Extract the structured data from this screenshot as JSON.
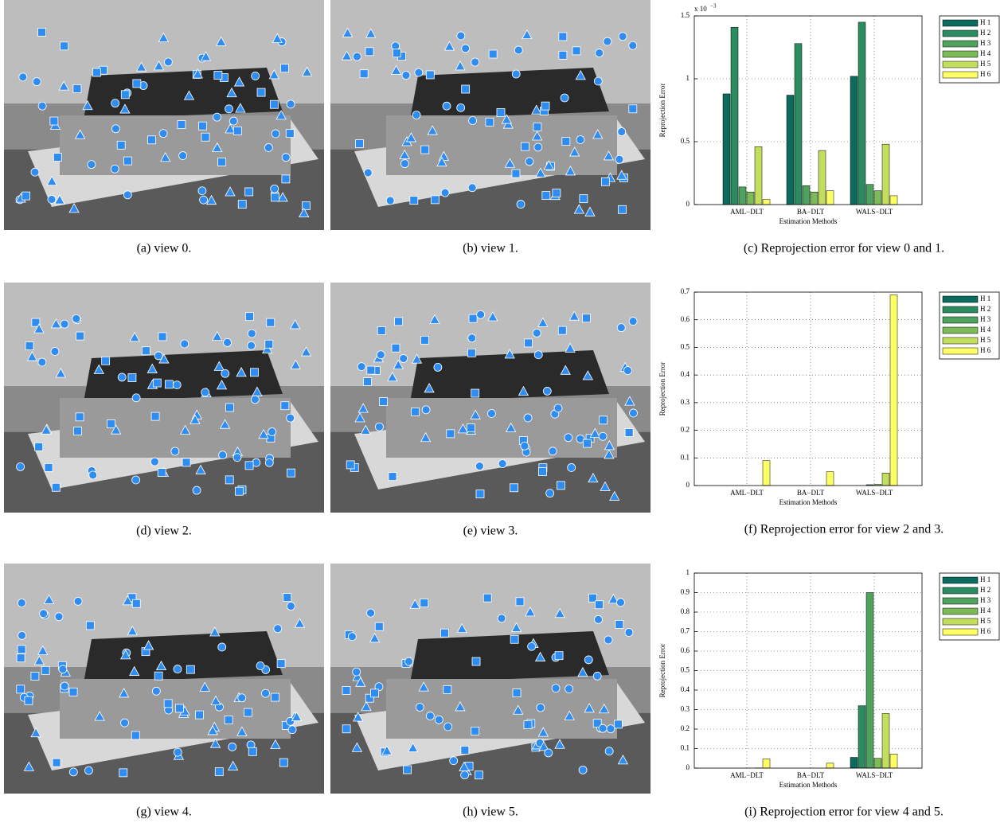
{
  "images": [
    {
      "caption": "(a) view 0."
    },
    {
      "caption": "(b) view 1."
    },
    {
      "caption": "(d) view 2."
    },
    {
      "caption": "(e) view 3."
    },
    {
      "caption": "(g) view 4."
    },
    {
      "caption": "(h) view 5."
    }
  ],
  "chart_data": [
    {
      "type": "bar",
      "caption": "(c) Reprojection error for view 0 and 1.",
      "y_label": "Reprojection Error",
      "x_label": "Estimation Methods",
      "scale_label": "x 10",
      "scale_exponent": "−3",
      "categories": [
        "AML−DLT",
        "BA−DLT",
        "WALS−DLT"
      ],
      "ylim": [
        0,
        0.0015
      ],
      "yticks": [
        0,
        {
          "value": 0.0005,
          "label": "0.5"
        },
        {
          "value": 0.001,
          "label": "1"
        },
        {
          "value": 0.0015,
          "label": "1.5"
        }
      ],
      "grid": true,
      "series": [
        {
          "name": "H 1",
          "color": "#0b6b5c",
          "values": [
            0.00088,
            0.00087,
            0.00102
          ]
        },
        {
          "name": "H 2",
          "color": "#2b8c61",
          "values": [
            0.00141,
            0.00128,
            0.00145
          ]
        },
        {
          "name": "H 3",
          "color": "#4fa35e",
          "values": [
            0.00014,
            0.00015,
            0.00016
          ]
        },
        {
          "name": "H 4",
          "color": "#7dba58",
          "values": [
            0.0001,
            0.0001,
            0.00011
          ]
        },
        {
          "name": "H 5",
          "color": "#c3dd5c",
          "values": [
            0.00046,
            0.00043,
            0.00048
          ]
        },
        {
          "name": "H 6",
          "color": "#ffff66",
          "values": [
            4e-05,
            0.00011,
            7e-05
          ]
        }
      ]
    },
    {
      "type": "bar",
      "caption": "(f) Reprojection error for view 2 and 3.",
      "y_label": "Reprojection Error",
      "x_label": "Estimation Methods",
      "categories": [
        "AML−DLT",
        "BA−DLT",
        "WALS−DLT"
      ],
      "ylim": [
        0,
        0.7
      ],
      "yticks": [
        0,
        0.1,
        0.2,
        0.3,
        0.4,
        0.5,
        0.6,
        0.7
      ],
      "grid": true,
      "series": [
        {
          "name": "H 1",
          "color": "#0b6b5c",
          "values": [
            0,
            0,
            0
          ]
        },
        {
          "name": "H 2",
          "color": "#2b8c61",
          "values": [
            0,
            0,
            0
          ]
        },
        {
          "name": "H 3",
          "color": "#4fa35e",
          "values": [
            0,
            0,
            0.003
          ]
        },
        {
          "name": "H 4",
          "color": "#7dba58",
          "values": [
            0,
            0,
            0.004
          ]
        },
        {
          "name": "H 5",
          "color": "#c3dd5c",
          "values": [
            0,
            0,
            0.045
          ]
        },
        {
          "name": "H 6",
          "color": "#ffff66",
          "values": [
            0.09,
            0.05,
            0.69
          ]
        }
      ]
    },
    {
      "type": "bar",
      "caption": "(i) Reprojection error for view 4 and 5.",
      "y_label": "Reprojection Error",
      "x_label": "Estimation Methods",
      "categories": [
        "AML−DLT",
        "BA−DLT",
        "WALS−DLT"
      ],
      "ylim": [
        0,
        1
      ],
      "yticks": [
        0,
        0.1,
        0.2,
        0.3,
        0.4,
        0.5,
        0.6,
        0.7,
        0.8,
        0.9,
        1
      ],
      "grid": true,
      "series": [
        {
          "name": "H 1",
          "color": "#0b6b5c",
          "values": [
            0,
            0,
            0.055
          ]
        },
        {
          "name": "H 2",
          "color": "#2b8c61",
          "values": [
            0,
            0,
            0.32
          ]
        },
        {
          "name": "H 3",
          "color": "#4fa35e",
          "values": [
            0,
            0,
            0.9
          ]
        },
        {
          "name": "H 4",
          "color": "#7dba58",
          "values": [
            0,
            0,
            0.05
          ]
        },
        {
          "name": "H 5",
          "color": "#c3dd5c",
          "values": [
            0.001,
            0,
            0.28
          ]
        },
        {
          "name": "H 6",
          "color": "#ffff66",
          "values": [
            0.047,
            0.025,
            0.072
          ]
        }
      ]
    }
  ]
}
